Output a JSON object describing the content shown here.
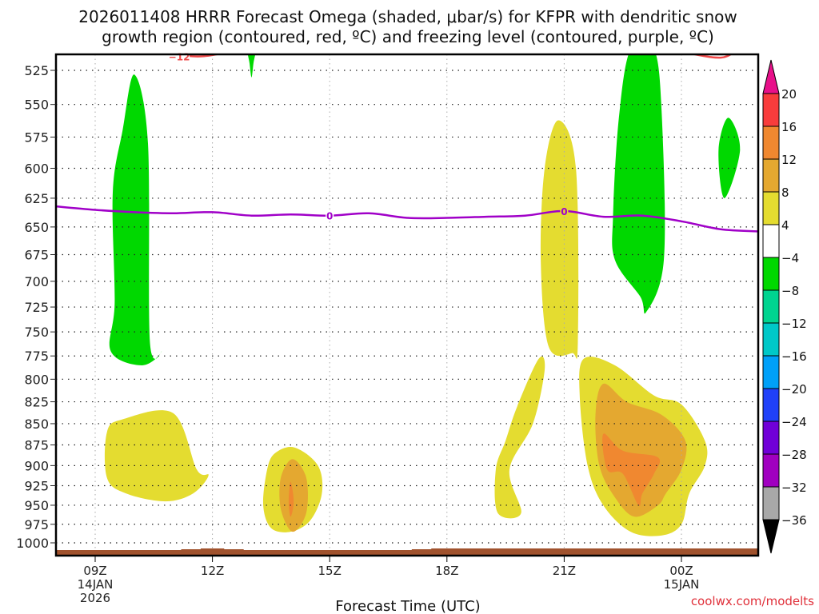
{
  "chart_data": {
    "type": "heatmap",
    "title_line1": "2026011408 HRRR Forecast Omega (shaded, μbar/s) for KFPR with dendritic snow",
    "title_line2": "growth region (contoured, red, ºC) and freezing level (contoured, purple, ºC)",
    "xlabel": "Forecast Time (UTC)",
    "ylabel": "",
    "credit": "coolwx.com/modelts",
    "y_ticks": [
      "525",
      "550",
      "575",
      "600",
      "625",
      "650",
      "675",
      "700",
      "725",
      "750",
      "775",
      "800",
      "825",
      "850",
      "875",
      "900",
      "925",
      "950",
      "975",
      "1000"
    ],
    "y_values": [
      525,
      550,
      575,
      600,
      625,
      650,
      675,
      700,
      725,
      750,
      775,
      800,
      825,
      850,
      875,
      900,
      925,
      950,
      975,
      1000
    ],
    "ylim": [
      510,
      1010
    ],
    "y_scale": "log-pressure (inverted)",
    "x_ticks": [
      {
        "hour": 9,
        "line1": "09Z",
        "line2": "14JAN",
        "line3": "2026"
      },
      {
        "hour": 12,
        "line1": "12Z",
        "line2": "",
        "line3": ""
      },
      {
        "hour": 15,
        "line1": "15Z",
        "line2": "",
        "line3": ""
      },
      {
        "hour": 18,
        "line1": "18Z",
        "line2": "",
        "line3": ""
      },
      {
        "hour": 21,
        "line1": "21Z",
        "line2": "",
        "line3": ""
      },
      {
        "hour": 24,
        "line1": "00Z",
        "line2": "15JAN",
        "line3": ""
      }
    ],
    "xlim_hours": [
      8,
      26
    ],
    "grid": true,
    "colorbar": {
      "placement": "right",
      "labels": [
        "20",
        "16",
        "12",
        "8",
        "4",
        "−4",
        "−8",
        "−12",
        "−16",
        "−20",
        "−24",
        "−28",
        "−32",
        "−36"
      ],
      "over_color": "#e8108a",
      "under_color": "#000000",
      "bands": [
        {
          "range": "16 to 20",
          "color": "#f83c3c"
        },
        {
          "range": "12 to 16",
          "color": "#f08830"
        },
        {
          "range": "8 to 12",
          "color": "#e4a830"
        },
        {
          "range": "4 to 8",
          "color": "#e4dc30"
        },
        {
          "range": "-4 to 4",
          "color": "#ffffff"
        },
        {
          "range": "-8 to -4",
          "color": "#00d800"
        },
        {
          "range": "-12 to -8",
          "color": "#00d490"
        },
        {
          "range": "-16 to -12",
          "color": "#00c8c8"
        },
        {
          "range": "-20 to -16",
          "color": "#00a0f8"
        },
        {
          "range": "-24 to -20",
          "color": "#2040f8"
        },
        {
          "range": "-28 to -24",
          "color": "#7000d8"
        },
        {
          "range": "-32 to -28",
          "color": "#a000c0"
        },
        {
          "range": "-36 to -32",
          "color": "#a8a8a8"
        }
      ]
    },
    "regions": [
      {
        "name": "lift-09z-upper",
        "band": "-8 to -4",
        "color": "#00d800",
        "points": [
          [
            10.0,
            528
          ],
          [
            10.35,
            580
          ],
          [
            10.4,
            760
          ],
          [
            10.7,
            770
          ],
          [
            10.2,
            785
          ],
          [
            9.4,
            770
          ],
          [
            9.5,
            720
          ],
          [
            9.45,
            620
          ],
          [
            9.7,
            570
          ]
        ]
      },
      {
        "name": "lift-13z-sliver",
        "band": "-8 to -4",
        "color": "#00d800",
        "points": [
          [
            12.9,
            510
          ],
          [
            13.1,
            510
          ],
          [
            13.05,
            520
          ],
          [
            13.0,
            530
          ],
          [
            12.95,
            520
          ]
        ]
      },
      {
        "name": "lift-23z-upper",
        "band": "-8 to -4",
        "color": "#00d800",
        "points": [
          [
            22.7,
            510
          ],
          [
            23.3,
            510
          ],
          [
            23.5,
            560
          ],
          [
            23.55,
            680
          ],
          [
            23.1,
            730
          ],
          [
            22.95,
            715
          ],
          [
            22.3,
            680
          ],
          [
            22.25,
            640
          ],
          [
            22.4,
            560
          ]
        ]
      },
      {
        "name": "lift-01z-small",
        "band": "-8 to -4",
        "color": "#00d800",
        "points": [
          [
            25.2,
            560
          ],
          [
            25.5,
            585
          ],
          [
            25.1,
            625
          ],
          [
            24.95,
            585
          ]
        ]
      },
      {
        "name": "sink-09z-low",
        "band": "4 to 8",
        "color": "#e4dc30",
        "points": [
          [
            11.0,
            838
          ],
          [
            11.6,
            905
          ],
          [
            11.9,
            912
          ],
          [
            11.5,
            935
          ],
          [
            10.8,
            945
          ],
          [
            9.8,
            935
          ],
          [
            9.3,
            915
          ],
          [
            9.3,
            860
          ],
          [
            9.7,
            845
          ]
        ]
      },
      {
        "name": "sink-14z-low",
        "band": "4 to 8",
        "color": "#e4dc30",
        "points": [
          [
            14.1,
            878
          ],
          [
            14.7,
            900
          ],
          [
            14.8,
            935
          ],
          [
            14.5,
            970
          ],
          [
            14.0,
            985
          ],
          [
            13.5,
            980
          ],
          [
            13.3,
            950
          ],
          [
            13.4,
            905
          ],
          [
            13.6,
            885
          ]
        ]
      },
      {
        "name": "sink-14z-core",
        "band": "8 to 12",
        "color": "#e4a830",
        "points": [
          [
            14.05,
            892
          ],
          [
            14.4,
            915
          ],
          [
            14.4,
            960
          ],
          [
            14.05,
            985
          ],
          [
            13.75,
            955
          ],
          [
            13.75,
            915
          ]
        ]
      },
      {
        "name": "sink-14z-max",
        "band": "12 to 16",
        "color": "#f08830",
        "points": [
          [
            14.0,
            920
          ],
          [
            14.08,
            945
          ],
          [
            14.0,
            965
          ],
          [
            13.95,
            945
          ]
        ]
      },
      {
        "name": "sink-21z-column",
        "band": "4 to 8",
        "color": "#e4dc30",
        "points": [
          [
            20.85,
            562
          ],
          [
            21.3,
            600
          ],
          [
            21.35,
            760
          ],
          [
            21.2,
            772
          ],
          [
            20.6,
            765
          ],
          [
            20.4,
            680
          ],
          [
            20.5,
            600
          ]
        ]
      },
      {
        "name": "sink-20z-low",
        "band": "4 to 8",
        "color": "#e4dc30",
        "points": [
          [
            20.35,
            778
          ],
          [
            20.5,
            790
          ],
          [
            20.2,
            850
          ],
          [
            19.6,
            905
          ],
          [
            19.9,
            960
          ],
          [
            19.3,
            960
          ],
          [
            19.25,
            905
          ],
          [
            19.5,
            870
          ],
          [
            19.8,
            830
          ]
        ]
      },
      {
        "name": "sink-23z-low",
        "band": "4 to 8",
        "color": "#e4dc30",
        "points": [
          [
            21.5,
            778
          ],
          [
            22.3,
            785
          ],
          [
            23.3,
            818
          ],
          [
            24.0,
            828
          ],
          [
            24.6,
            870
          ],
          [
            24.6,
            900
          ],
          [
            24.2,
            935
          ],
          [
            24.0,
            975
          ],
          [
            23.5,
            990
          ],
          [
            22.7,
            985
          ],
          [
            22.0,
            950
          ],
          [
            21.6,
            900
          ],
          [
            21.4,
            820
          ]
        ]
      },
      {
        "name": "sink-23z-mid",
        "band": "8 to 12",
        "color": "#e4a830",
        "points": [
          [
            22.0,
            805
          ],
          [
            22.6,
            825
          ],
          [
            23.5,
            840
          ],
          [
            24.1,
            870
          ],
          [
            24.0,
            905
          ],
          [
            23.6,
            935
          ],
          [
            23.4,
            950
          ],
          [
            22.8,
            965
          ],
          [
            22.3,
            940
          ],
          [
            21.9,
            900
          ],
          [
            21.8,
            840
          ]
        ]
      },
      {
        "name": "sink-23z-max",
        "band": "12 to 16",
        "color": "#f08830",
        "points": [
          [
            22.0,
            862
          ],
          [
            22.5,
            882
          ],
          [
            23.4,
            890
          ],
          [
            23.3,
            910
          ],
          [
            23.0,
            935
          ],
          [
            22.9,
            950
          ],
          [
            22.5,
            910
          ],
          [
            22.1,
            905
          ]
        ]
      }
    ],
    "red_contours": [
      {
        "label": "−12",
        "color": "#f04848",
        "points": [
          [
            8.0,
            510
          ],
          [
            10.0,
            508
          ],
          [
            11.5,
            515
          ],
          [
            12.5,
            512
          ],
          [
            13.5,
            511
          ],
          [
            14.5,
            509
          ],
          [
            16.0,
            507
          ],
          [
            17.5,
            510
          ],
          [
            18.5,
            513
          ],
          [
            19.5,
            510
          ],
          [
            21.0,
            506
          ],
          [
            22.8,
            507
          ],
          [
            24.0,
            512
          ],
          [
            25.0,
            516
          ],
          [
            25.5,
            510
          ],
          [
            26.0,
            509
          ]
        ]
      }
    ],
    "freezing_level": {
      "label": "0",
      "color": "#a000c8",
      "points": [
        [
          8.0,
          632
        ],
        [
          9.0,
          635
        ],
        [
          10.0,
          637
        ],
        [
          11.0,
          638
        ],
        [
          12.0,
          637
        ],
        [
          13.0,
          640
        ],
        [
          14.0,
          639
        ],
        [
          15.0,
          640
        ],
        [
          16.0,
          638
        ],
        [
          17.0,
          642
        ],
        [
          18.0,
          642
        ],
        [
          19.0,
          641
        ],
        [
          20.0,
          640
        ],
        [
          21.0,
          636
        ],
        [
          22.0,
          641
        ],
        [
          23.0,
          640
        ],
        [
          24.0,
          645
        ],
        [
          25.0,
          652
        ],
        [
          26.0,
          654
        ]
      ],
      "label_hours": [
        15.0,
        21.0
      ]
    },
    "terrain": {
      "color": "#a0522d",
      "label": "ground"
    }
  }
}
